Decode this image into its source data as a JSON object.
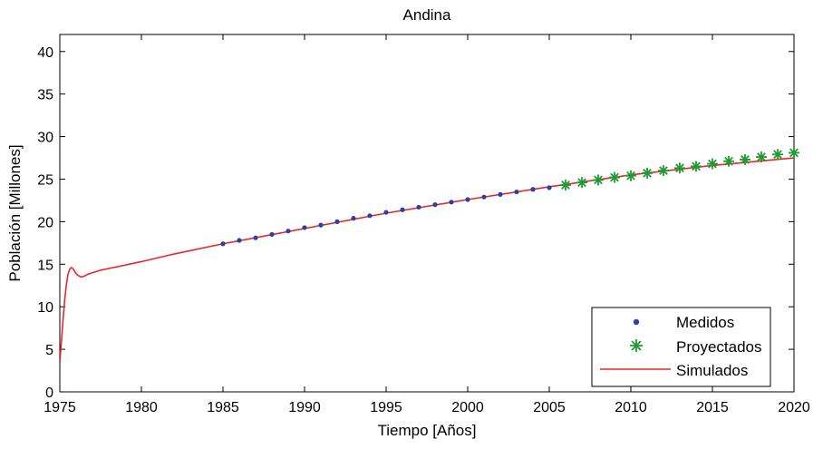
{
  "chart_data": {
    "type": "line",
    "title": "Andina",
    "xlabel": "Tiempo [Años]",
    "ylabel": "Población [Millones]",
    "xlim": [
      1975,
      2020
    ],
    "ylim": [
      0,
      42
    ],
    "xticks": [
      1975,
      1980,
      1985,
      1990,
      1995,
      2000,
      2005,
      2010,
      2015,
      2020
    ],
    "yticks": [
      0,
      5,
      10,
      15,
      20,
      25,
      30,
      35,
      40
    ],
    "grid": false,
    "legend_position": "bottom-right",
    "series": [
      {
        "name": "Medidos",
        "style": "dot",
        "color": "#2a3fa8",
        "x": [
          1985,
          1986,
          1987,
          1988,
          1989,
          1990,
          1991,
          1992,
          1993,
          1994,
          1995,
          1996,
          1997,
          1998,
          1999,
          2000,
          2001,
          2002,
          2003,
          2004,
          2005
        ],
        "y": [
          17.4,
          17.8,
          18.1,
          18.5,
          18.9,
          19.3,
          19.6,
          20.0,
          20.4,
          20.7,
          21.1,
          21.4,
          21.7,
          22.0,
          22.3,
          22.6,
          22.9,
          23.2,
          23.5,
          23.8,
          24.0
        ]
      },
      {
        "name": "Proyectados",
        "style": "star",
        "color": "#1e9a32",
        "x": [
          2006,
          2007,
          2008,
          2009,
          2010,
          2011,
          2012,
          2013,
          2014,
          2015,
          2016,
          2017,
          2018,
          2019,
          2020
        ],
        "y": [
          24.3,
          24.6,
          24.9,
          25.2,
          25.4,
          25.7,
          26.0,
          26.3,
          26.5,
          26.8,
          27.1,
          27.3,
          27.6,
          27.9,
          28.1
        ]
      },
      {
        "name": "Simulados",
        "style": "line",
        "color": "#e8262a",
        "x": [
          1975,
          1975.1,
          1975.2,
          1975.3,
          1975.4,
          1975.5,
          1975.6,
          1975.7,
          1975.8,
          1975.9,
          1976.0,
          1976.1,
          1976.2,
          1976.3,
          1976.5,
          1976.7,
          1977.0,
          1977.5,
          1978,
          1980,
          1982,
          1985,
          1990,
          1995,
          2000,
          2005,
          2010,
          2015,
          2020
        ],
        "y": [
          3.5,
          6.0,
          8.5,
          10.8,
          12.6,
          13.8,
          14.4,
          14.6,
          14.5,
          14.2,
          13.9,
          13.7,
          13.6,
          13.5,
          13.6,
          13.8,
          14.0,
          14.3,
          14.5,
          15.3,
          16.2,
          17.4,
          19.2,
          21.0,
          22.6,
          24.1,
          25.5,
          26.6,
          27.5
        ]
      }
    ]
  }
}
